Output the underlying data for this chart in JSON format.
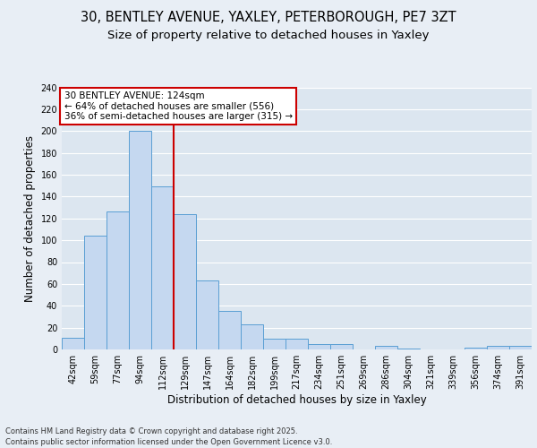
{
  "title1": "30, BENTLEY AVENUE, YAXLEY, PETERBOROUGH, PE7 3ZT",
  "title2": "Size of property relative to detached houses in Yaxley",
  "xlabel": "Distribution of detached houses by size in Yaxley",
  "ylabel": "Number of detached properties",
  "footer": "Contains HM Land Registry data © Crown copyright and database right 2025.\nContains public sector information licensed under the Open Government Licence v3.0.",
  "bar_labels": [
    "42sqm",
    "59sqm",
    "77sqm",
    "94sqm",
    "112sqm",
    "129sqm",
    "147sqm",
    "164sqm",
    "182sqm",
    "199sqm",
    "217sqm",
    "234sqm",
    "251sqm",
    "269sqm",
    "286sqm",
    "304sqm",
    "321sqm",
    "339sqm",
    "356sqm",
    "374sqm",
    "391sqm"
  ],
  "bar_values": [
    11,
    104,
    126,
    200,
    149,
    124,
    63,
    35,
    23,
    10,
    10,
    5,
    5,
    0,
    3,
    1,
    0,
    0,
    2,
    3,
    3
  ],
  "bar_color": "#c5d8f0",
  "bar_edge_color": "#5a9fd4",
  "annotation_text": "30 BENTLEY AVENUE: 124sqm\n← 64% of detached houses are smaller (556)\n36% of semi-detached houses are larger (315) →",
  "annotation_box_color": "#ffffff",
  "annotation_box_edge": "#cc0000",
  "vline_color": "#cc0000",
  "ylim": [
    0,
    240
  ],
  "yticks": [
    0,
    20,
    40,
    60,
    80,
    100,
    120,
    140,
    160,
    180,
    200,
    220,
    240
  ],
  "bg_color": "#e8eef5",
  "plot_bg_color": "#dce6f0",
  "grid_color": "#ffffff",
  "title_fontsize": 10.5,
  "subtitle_fontsize": 9.5,
  "tick_fontsize": 7,
  "label_fontsize": 8.5,
  "annotation_fontsize": 7.5,
  "footer_fontsize": 6
}
